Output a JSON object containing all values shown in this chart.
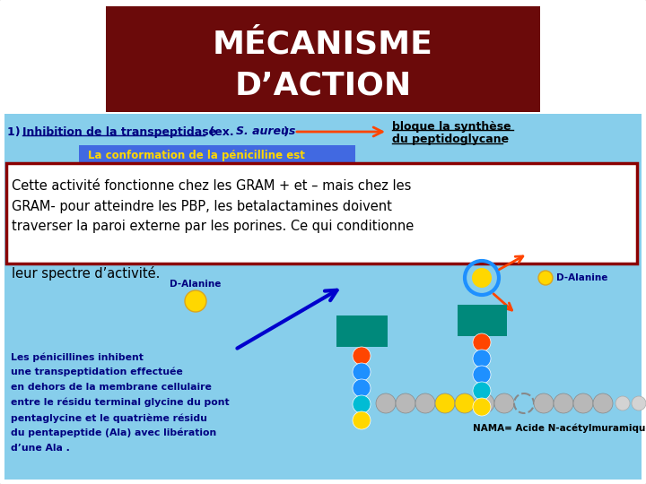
{
  "bg_color": "#ffffff",
  "slide_bg_light": "#87CEEB",
  "title_bg": "#6B0A0A",
  "title_line1": "MÉCANISME",
  "title_line2": "D’ACTION",
  "title_color": "#ffffff",
  "conf_text": "La conformation de la pénicilline est",
  "box_text_lines": [
    "Cette activité fonctionne chez les GRAM + et – mais chez les",
    "GRAM- pour atteindre les PBP, les betalactamines doivent",
    "traverser la paroi externe par les porines. Ce qui conditionne"
  ],
  "spectre_text": "leur spectre d’activité.",
  "dalanine_left": "D-Alanine",
  "dalanine_right": "D-Alanine",
  "nama_text": "NAMA= Acide N-acétylmuramique",
  "penicillines_lines": [
    "Les pénicillines inhibent",
    "une transpeptidation effectuée",
    "en dehors de la membrane cellulaire",
    "entre le résidu terminal glycine du pont",
    "pentaglycine et le quatrième résidu",
    "du pentapeptide (Ala) avec libération",
    "d’une Ala ."
  ],
  "box_border": "#8B0000",
  "navy": "#000080",
  "orange_arrow": "#FF4500",
  "blue_arrow": "#0000CD",
  "conf_bg": "#4169E1",
  "conf_text_color": "#FFD700"
}
